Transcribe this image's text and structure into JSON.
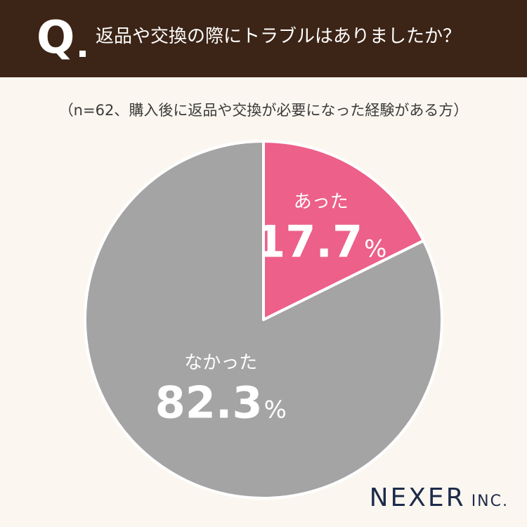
{
  "header": {
    "q_label": "Q",
    "question": "返品や交換の際にトラブルはありましたか？",
    "background": "#3c2416"
  },
  "subtitle": "（n=62、購入後に返品や交換が必要になった経験がある方）",
  "chart_data": {
    "type": "pie",
    "title": "返品や交換の際にトラブルはありましたか？",
    "subtitle": "（n=62、購入後に返品や交換が必要になった経験がある方）",
    "slices": [
      {
        "label": "あった",
        "value": 17.7,
        "display": "17.7",
        "unit": "%",
        "color": "#ec608a"
      },
      {
        "label": "なかった",
        "value": 82.3,
        "display": "82.3",
        "unit": "%",
        "color": "#a4a4a4"
      }
    ]
  },
  "brand": {
    "name": "NEXER",
    "suffix": "INC.",
    "color": "#1d2b4a"
  }
}
